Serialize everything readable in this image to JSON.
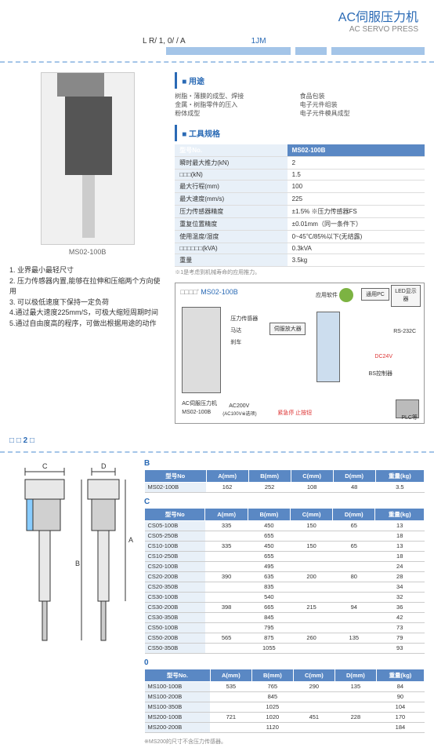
{
  "header": {
    "title_cn": "AC伺服压力机",
    "title_en": "AC SERVO PRESS",
    "lr_code": "L R/ 1, 0/ / A",
    "jm_code": "1JM"
  },
  "product": {
    "model_label": "MS02-100B"
  },
  "features": [
    "1. 业界最小最轻尺寸",
    "2. 压力传感器内置,能够在拉伸和压缩两个方向使用",
    "3. 可以极低速度下保持一定负荷",
    "4.通过最大速度225mm/S，可极大缩短周期时间",
    "5.通过自由度高的程序，可做出根据用途的动作"
  ],
  "usage": {
    "title": "■ 用途",
    "col1": [
      "树脂・薄膜的成型、焊接",
      "金属・树脂零件的压入",
      "粉体成型"
    ],
    "col2": [
      "食品包装",
      "电子元件组装",
      "电子元件模具成型"
    ]
  },
  "spec": {
    "title": "■ 工具规格",
    "header_label": "型号No.",
    "header_value": "MS02-100B",
    "rows": [
      {
        "label": "瞬时最大推力(kN)",
        "value": "2"
      },
      {
        "label": "□□□(kN)",
        "value": "1.5"
      },
      {
        "label": "最大行程(mm)",
        "value": "100"
      },
      {
        "label": "最大速度(mm/s)",
        "value": "225"
      },
      {
        "label": "压力传感器精度",
        "value": "±1.5% ※压力传感器FS"
      },
      {
        "label": "重复位置精度",
        "value": "±0.01mm（同一条件下）"
      },
      {
        "label": "使用温度/湿度",
        "value": "0~45℃/85%以下(无结露)"
      },
      {
        "label": "□□□□□□(kVA)",
        "value": "0.3kVA"
      },
      {
        "label": "重量",
        "value": "3.5kg"
      }
    ],
    "footnote": "※1是考虑到机械寿命的应用推力。"
  },
  "diagram": {
    "title_gray": "□□□□'",
    "title_blue": "MS02-100B",
    "labels": {
      "app_soft": "应用软件",
      "pc": "通用PC",
      "led": "LED显示器",
      "press_sensor": "压力传感器",
      "motor": "马达",
      "brake": "刹车",
      "servo_amp": "伺服放大器",
      "rs232": "RS-232C",
      "dc24v": "DC24V",
      "bs_ctrl": "BS控制器",
      "plc": "PLC等",
      "estop": "紧急停 止按钮",
      "ac200v": "AC200V",
      "ac200v_sub": "(AC100V※选项)",
      "press_unit": "AC伺服压力机",
      "press_model": "MS02-100B"
    }
  },
  "section2_label": "□ □ 2 □",
  "tables": {
    "B": {
      "label": "B",
      "headers": [
        "型号No",
        "A(mm)",
        "B(mm)",
        "C(mm)",
        "D(mm)",
        "重量(kg)"
      ],
      "rows": [
        [
          "MS02-100B",
          "162",
          "252",
          "108",
          "48",
          "3.5"
        ]
      ]
    },
    "C": {
      "label": "C",
      "headers": [
        "型号No",
        "A(mm)",
        "B(mm)",
        "C(mm)",
        "D(mm)",
        "重量(kg)"
      ],
      "rows": [
        [
          "CS05-100B",
          "335",
          "450",
          "150",
          "65",
          "13"
        ],
        [
          "CS05-250B",
          "",
          "655",
          "",
          "",
          "18"
        ],
        [
          "CS10-100B",
          "335",
          "450",
          "150",
          "65",
          "13"
        ],
        [
          "CS10-250B",
          "",
          "655",
          "",
          "",
          "18"
        ],
        [
          "CS20-100B",
          "",
          "495",
          "",
          "",
          "24"
        ],
        [
          "CS20-200B",
          "390",
          "635",
          "200",
          "80",
          "28"
        ],
        [
          "CS20-350B",
          "",
          "835",
          "",
          "",
          "34"
        ],
        [
          "CS30-100B",
          "",
          "540",
          "",
          "",
          "32"
        ],
        [
          "CS30-200B",
          "398",
          "665",
          "215",
          "94",
          "36"
        ],
        [
          "CS30-350B",
          "",
          "845",
          "",
          "",
          "42"
        ],
        [
          "CS50-100B",
          "",
          "795",
          "",
          "",
          "73"
        ],
        [
          "CS50-200B",
          "565",
          "875",
          "260",
          "135",
          "79"
        ],
        [
          "CS50-350B",
          "",
          "1055",
          "",
          "",
          "93"
        ]
      ]
    },
    "O": {
      "label": "0",
      "headers": [
        "型号No.",
        "A(mm)",
        "B(mm)",
        "C(mm)",
        "D(mm)",
        "重量(kg)"
      ],
      "rows": [
        [
          "MS100-100B",
          "535",
          "765",
          "290",
          "135",
          "84"
        ],
        [
          "MS100-200B",
          "",
          "845",
          "",
          "",
          "90"
        ],
        [
          "MS100-350B",
          "",
          "1025",
          "",
          "",
          "104"
        ],
        [
          "MS200-100B",
          "721",
          "1020",
          "451",
          "228",
          "170"
        ],
        [
          "MS200-200B",
          "",
          "1120",
          "",
          "",
          "184"
        ]
      ],
      "footnote": "※MS200的尺寸不含压力传感器。"
    }
  }
}
